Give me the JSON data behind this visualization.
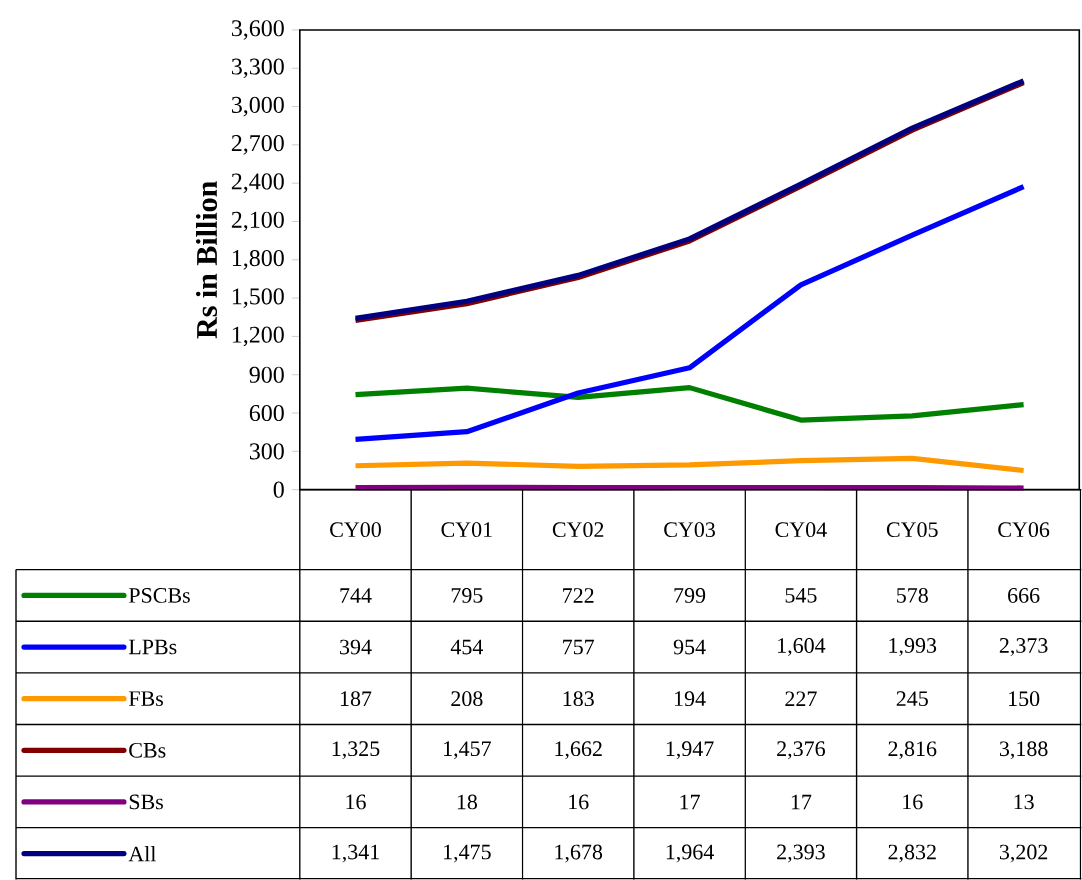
{
  "chart_data": {
    "type": "line",
    "ylabel": "Rs in Billion",
    "categories": [
      "CY00",
      "CY01",
      "CY02",
      "CY03",
      "CY04",
      "CY05",
      "CY06"
    ],
    "ylim": [
      0,
      3600
    ],
    "yticks": [
      0,
      300,
      600,
      900,
      {
        "value": 1200,
        "label": "1,200"
      },
      {
        "value": 1500,
        "label": "1,500"
      },
      {
        "value": 1800,
        "label": "1,800"
      },
      {
        "value": 2100,
        "label": "2,100"
      },
      {
        "value": 2400,
        "label": "2,400"
      },
      {
        "value": 2700,
        "label": "2,700"
      },
      {
        "value": 3000,
        "label": "3,000"
      },
      {
        "value": 3300,
        "label": "3,300"
      },
      {
        "value": 3600,
        "label": "3,600"
      }
    ],
    "legend": "bottom",
    "series": [
      {
        "name": "PSCBs",
        "color": "#008000",
        "values": [
          744,
          795,
          722,
          799,
          545,
          578,
          666
        ],
        "value_labels": [
          "744",
          "795",
          "722",
          "799",
          "545",
          "578",
          "666"
        ]
      },
      {
        "name": "LPBs",
        "color": "#0000ff",
        "values": [
          394,
          454,
          757,
          954,
          1604,
          1993,
          2373
        ],
        "value_labels": [
          "394",
          "454",
          "757",
          "954",
          "1,604",
          "1,993",
          "2,373"
        ]
      },
      {
        "name": "FBs",
        "color": "#ff9900",
        "values": [
          187,
          208,
          183,
          194,
          227,
          245,
          150
        ],
        "value_labels": [
          "187",
          "208",
          "183",
          "194",
          "227",
          "245",
          "150"
        ]
      },
      {
        "name": "CBs",
        "color": "#800000",
        "values": [
          1325,
          1457,
          1662,
          1947,
          2376,
          2816,
          3188
        ],
        "value_labels": [
          "1,325",
          "1,457",
          "1,662",
          "1,947",
          "2,376",
          "2,816",
          "3,188"
        ]
      },
      {
        "name": "SBs",
        "color": "#800080",
        "values": [
          16,
          18,
          16,
          17,
          17,
          16,
          13
        ],
        "value_labels": [
          "16",
          "18",
          "16",
          "17",
          "17",
          "16",
          "13"
        ]
      },
      {
        "name": "All",
        "color": "#000080",
        "values": [
          1341,
          1475,
          1678,
          1964,
          2393,
          2832,
          3202
        ],
        "value_labels": [
          "1,341",
          "1,475",
          "1,678",
          "1,964",
          "2,393",
          "2,832",
          "3,202"
        ]
      }
    ]
  }
}
